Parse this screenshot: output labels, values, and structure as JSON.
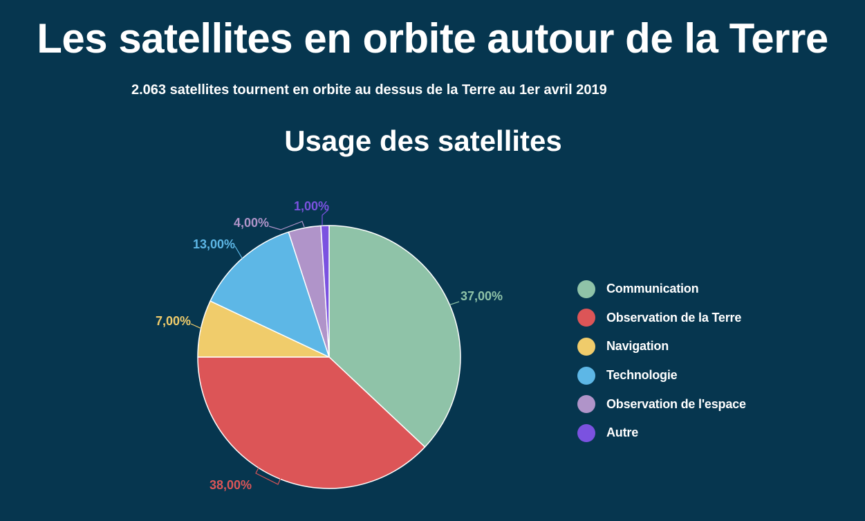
{
  "header": {
    "title": "Les satellites en orbite autour de la Terre",
    "subtitle": "2.063 satellites tournent en orbite au dessus de la Terre au 1er avril 2019"
  },
  "chart_data": {
    "type": "pie",
    "title": "Usage des satellites",
    "legend_position": "right",
    "label_format": "percent",
    "slices": [
      {
        "label": "Communication",
        "value": 37.0,
        "display": "37,00%",
        "color": "#8fc3a8"
      },
      {
        "label": "Observation de la Terre",
        "value": 38.0,
        "display": "38,00%",
        "color": "#dc5557"
      },
      {
        "label": "Navigation",
        "value": 7.0,
        "display": "7,00%",
        "color": "#f0cc6b"
      },
      {
        "label": "Technologie",
        "value": 13.0,
        "display": "13,00%",
        "color": "#5db7e6"
      },
      {
        "label": "Observation de l'espace",
        "value": 4.0,
        "display": "4,00%",
        "color": "#b094c9"
      },
      {
        "label": "Autre",
        "value": 1.0,
        "display": "1,00%",
        "color": "#7b52e0"
      }
    ]
  }
}
